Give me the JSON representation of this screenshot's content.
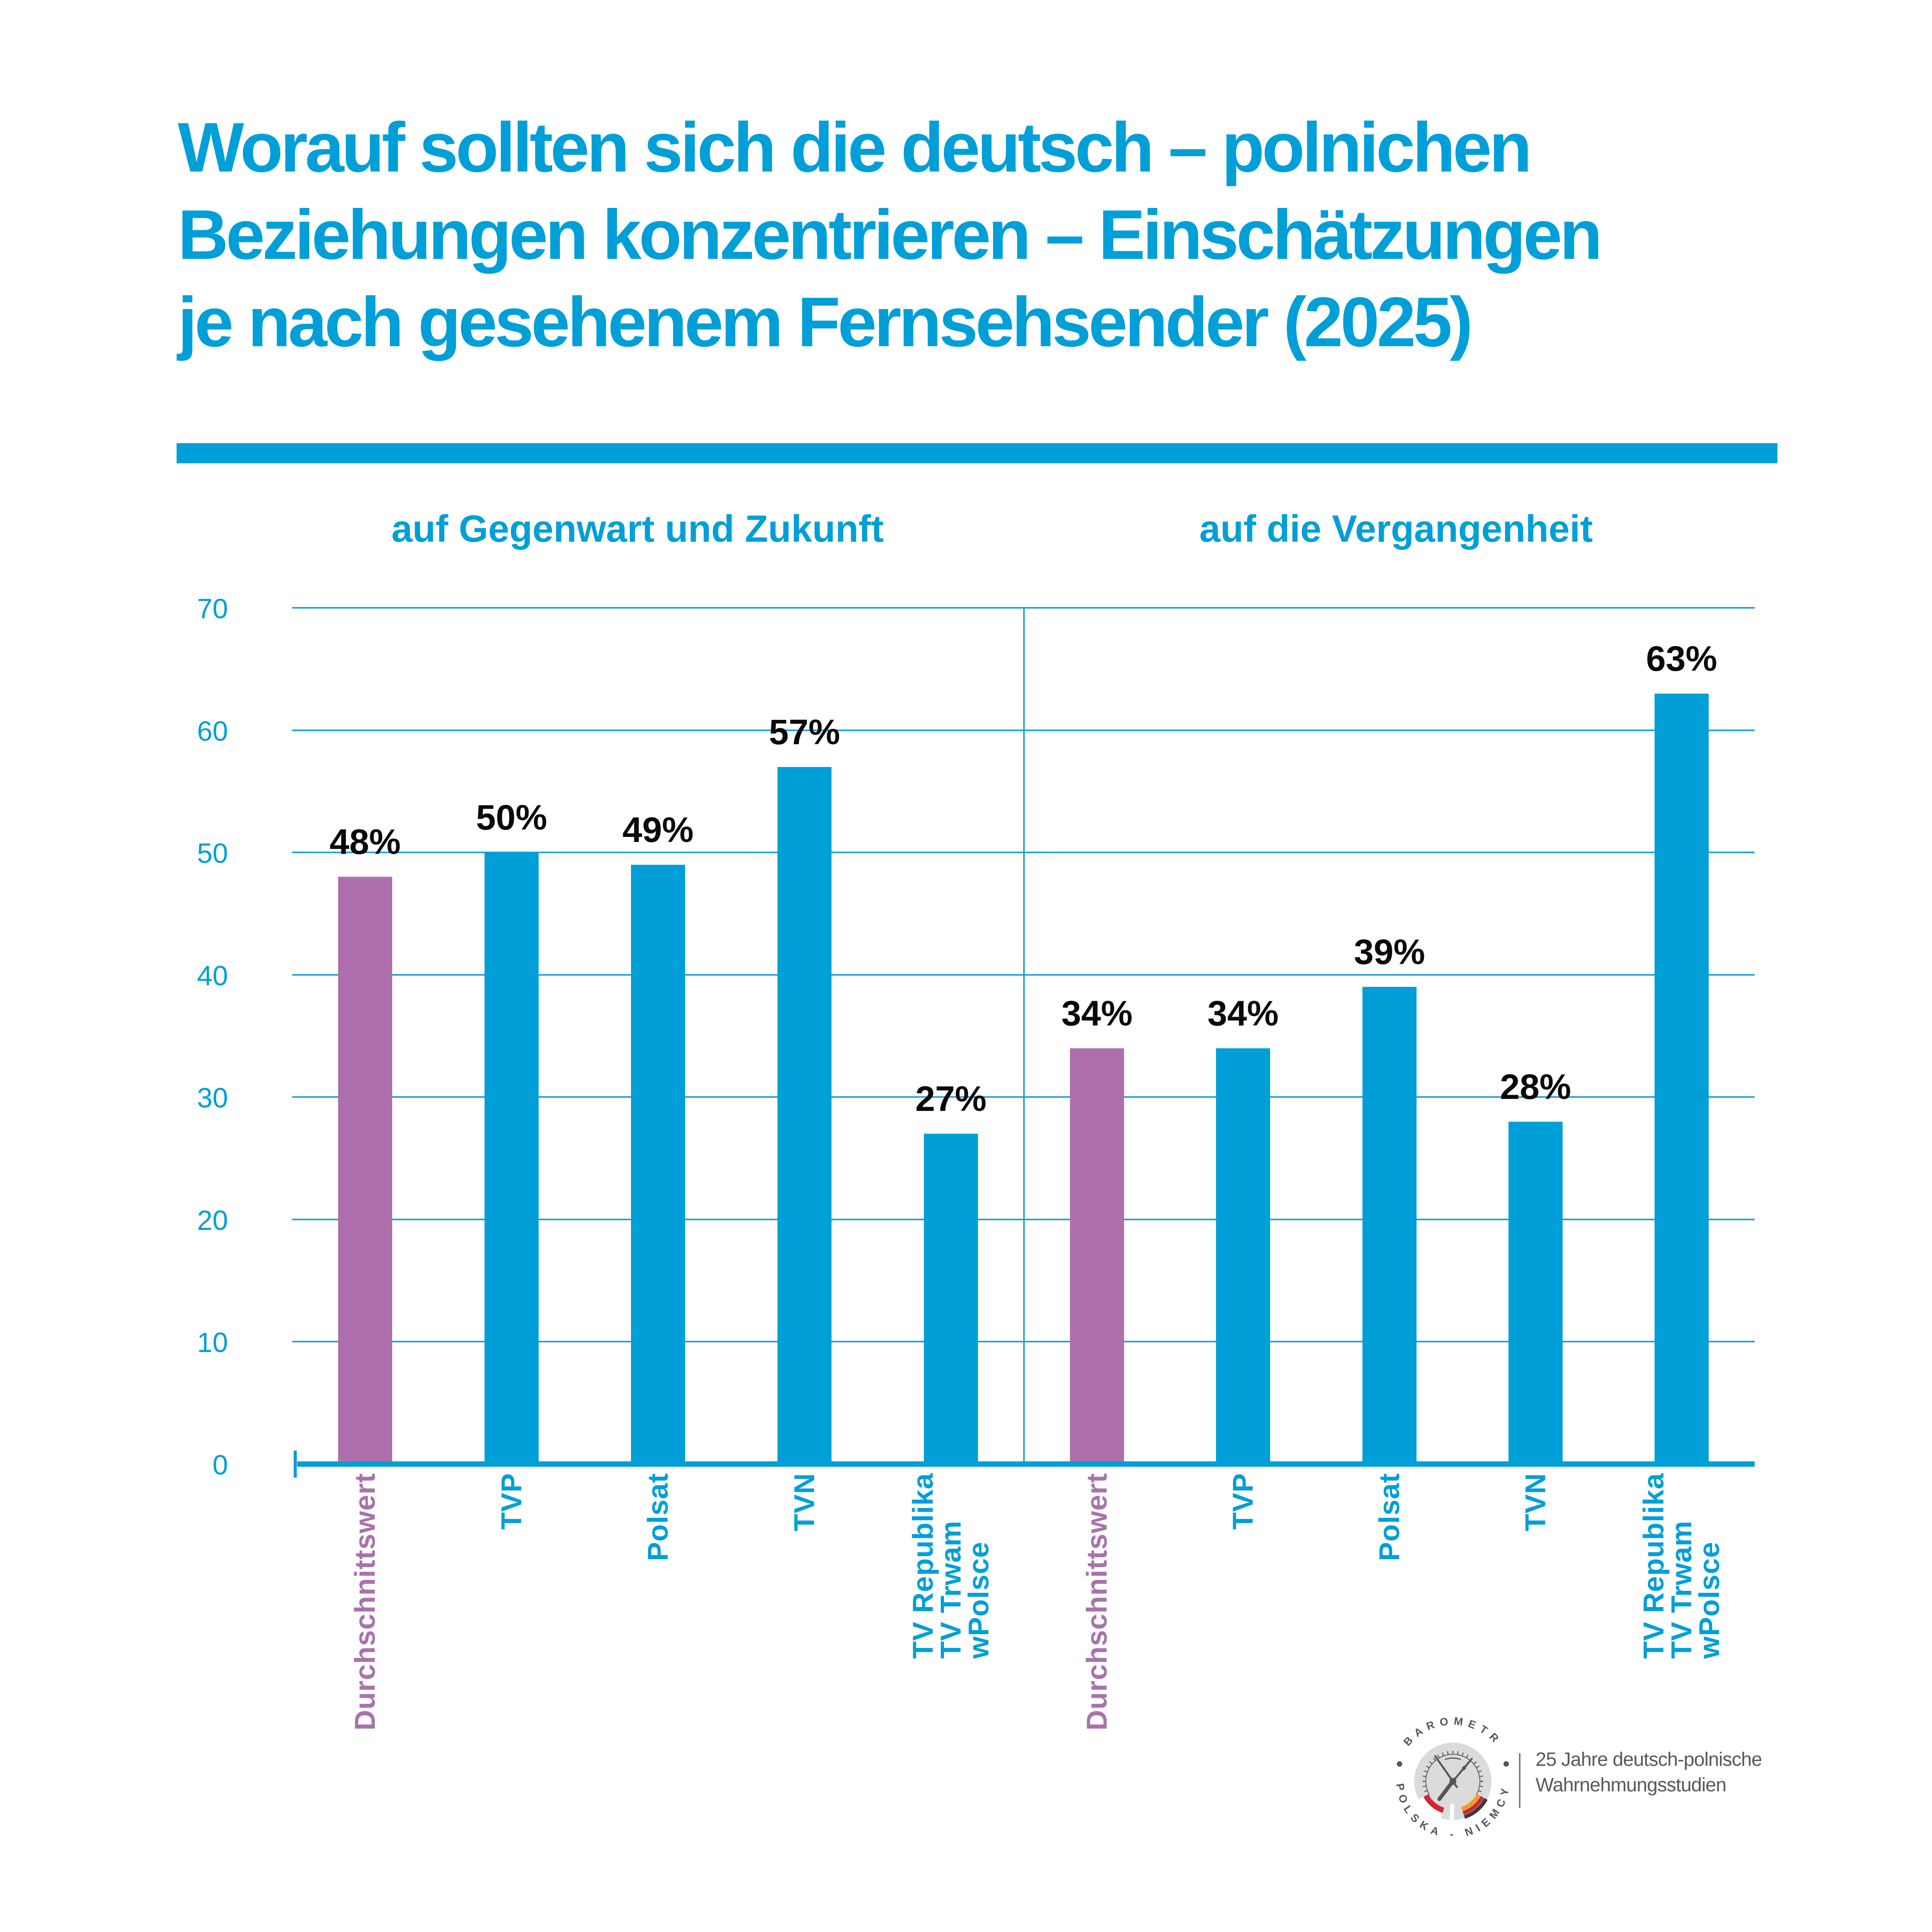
{
  "title": {
    "lines": [
      "Worauf sollten sich die deutsch – polnichen",
      "Beziehungen konzentrieren – Einschätzungen",
      "je nach gesehenem Fernsehsender (2025)"
    ]
  },
  "panels": [
    {
      "label": "auf Gegenwart und Zukunft"
    },
    {
      "label": "auf die Vergangenheit"
    }
  ],
  "chart_data": {
    "type": "bar",
    "title": "Worauf sollten sich die deutsch – polnichen Beziehungen konzentrieren – Einschätzungen je nach gesehenem Fernsehsender (2025)",
    "categories": [
      "Durchschnittswert",
      "TVP",
      "Polsat",
      "TVN",
      "TV Republika\nTV Trwam\nwPolsce"
    ],
    "series": [
      {
        "name": "auf Gegenwart und Zukunft",
        "values": [
          48,
          50,
          49,
          57,
          27
        ]
      },
      {
        "name": "auf die Vergangenheit",
        "values": [
          34,
          34,
          39,
          28,
          63
        ]
      }
    ],
    "value_suffix": "%",
    "ylim": [
      0,
      70
    ],
    "yticks": [
      0,
      10,
      20,
      30,
      40,
      50,
      60,
      70
    ],
    "grid": true,
    "legend_position": "none",
    "highlight_category": "Durchschnittswert",
    "xlabel": "",
    "ylabel": ""
  },
  "colors": {
    "accent": "#009FD8",
    "bar": "#009FD8",
    "grid": "#18A2D9",
    "highlight": "#AE6FAD",
    "highlight_label": "#A873AB",
    "value_label": "#0A0A0B",
    "logo_gray": "#DBDBDC",
    "logo_dark": "#55565A",
    "footer_text": "#58595B",
    "footer_divider": "#797A7D",
    "poland_red": "#D22630",
    "germany_black": "#3B3B3D",
    "germany_red": "#D22630",
    "germany_gold": "#F29C1F"
  },
  "footer": {
    "logo_text_top": "BAROMETR",
    "logo_text_bottom": "POLSKA - NIEMCY",
    "caption_lines": [
      "25 Jahre deutsch-polnische",
      "Wahrnehmungsstudien"
    ]
  }
}
